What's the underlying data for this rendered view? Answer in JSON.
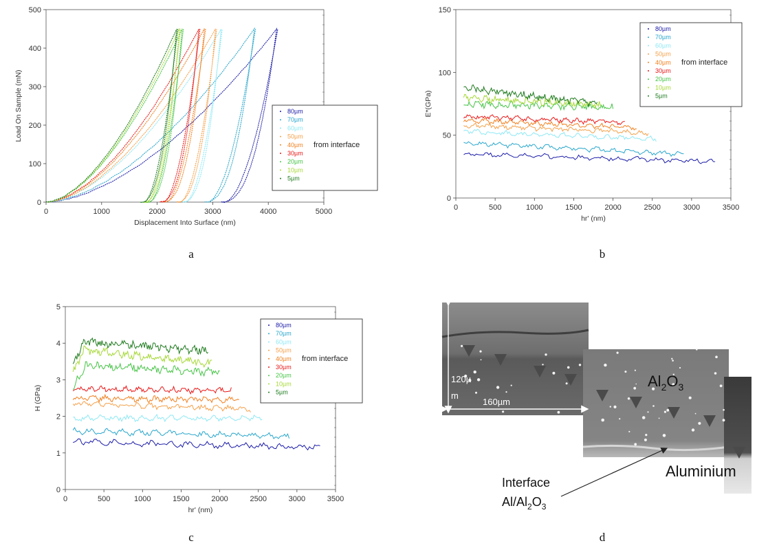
{
  "colors": [
    "#1a1aa8",
    "#28a6cc",
    "#8ee8f4",
    "#f4a04a",
    "#f08020",
    "#e81818",
    "#46c446",
    "#a6d836",
    "#1e7a1e"
  ],
  "legend": {
    "labels": [
      "80µm",
      "70µm",
      "60µm",
      "50µm",
      "40µm",
      "30µm",
      "20µm",
      "10µm",
      "5µm"
    ],
    "from_text": "from interface"
  },
  "panel_labels": {
    "a": "a",
    "b": "b",
    "c": "c",
    "d": "d"
  },
  "chart_data": [
    {
      "id": "a",
      "type": "line",
      "title": "",
      "xlabel": "Displacement Into Surface (nm)",
      "ylabel": "Load On Sample (mN)",
      "xlim": [
        0,
        5000
      ],
      "ylim": [
        0,
        500
      ],
      "xticks": [
        "0",
        "1000",
        "2000",
        "3000",
        "4000",
        "5000"
      ],
      "yticks": [
        "0",
        "100",
        "200",
        "300",
        "400",
        "500"
      ],
      "load_curve_note": "loading-unloading loops, max load 450 mN",
      "series": [
        {
          "name": "80µm",
          "max_disp": 4150,
          "final_disp": 3150,
          "max_load": 450
        },
        {
          "name": "70µm",
          "max_disp": 3750,
          "final_disp": 2850,
          "max_load": 450
        },
        {
          "name": "60µm",
          "max_disp": 3150,
          "final_disp": 2450,
          "max_load": 450
        },
        {
          "name": "50µm",
          "max_disp": 3050,
          "final_disp": 2350,
          "max_load": 450
        },
        {
          "name": "40µm",
          "max_disp": 2850,
          "final_disp": 2100,
          "max_load": 450
        },
        {
          "name": "30µm",
          "max_disp": 2750,
          "final_disp": 2050,
          "max_load": 450
        },
        {
          "name": "20µm",
          "max_disp": 2450,
          "final_disp": 1800,
          "max_load": 450
        },
        {
          "name": "10µm",
          "max_disp": 2400,
          "final_disp": 1750,
          "max_load": 450
        },
        {
          "name": "5µm",
          "max_disp": 2350,
          "final_disp": 1700,
          "max_load": 450
        }
      ]
    },
    {
      "id": "b",
      "type": "line",
      "title": "",
      "xlabel": "hr' (nm)",
      "ylabel": "E*(GPa)",
      "xlim": [
        0,
        3500
      ],
      "ylim": [
        0,
        150
      ],
      "xticks": [
        "0",
        "500",
        "1000",
        "1500",
        "2000",
        "2500",
        "3000",
        "3500"
      ],
      "yticks": [
        "0",
        "50",
        "100",
        "150"
      ],
      "series": [
        {
          "name": "80µm",
          "x": [
            100,
            3300
          ],
          "y": [
            35,
            29
          ]
        },
        {
          "name": "70µm",
          "x": [
            100,
            2900
          ],
          "y": [
            44,
            35
          ]
        },
        {
          "name": "60µm",
          "x": [
            100,
            2550
          ],
          "y": [
            53,
            47
          ]
        },
        {
          "name": "50µm",
          "x": [
            100,
            2450
          ],
          "y": [
            58,
            52
          ]
        },
        {
          "name": "40µm",
          "x": [
            100,
            2300
          ],
          "y": [
            62,
            56
          ]
        },
        {
          "name": "30µm",
          "x": [
            100,
            2150
          ],
          "y": [
            65,
            60
          ]
        },
        {
          "name": "20µm",
          "x": [
            100,
            2000
          ],
          "y": [
            75,
            72
          ]
        },
        {
          "name": "10µm",
          "x": [
            100,
            1850
          ],
          "y": [
            80,
            74
          ]
        },
        {
          "name": "5µm",
          "x": [
            100,
            1800
          ],
          "y": [
            88,
            75
          ]
        }
      ]
    },
    {
      "id": "c",
      "type": "line",
      "title": "",
      "xlabel": "hr' (nm)",
      "ylabel": "H (GPa)",
      "xlim": [
        0,
        3500
      ],
      "ylim": [
        0,
        5
      ],
      "xticks": [
        "0",
        "500",
        "1000",
        "1500",
        "2000",
        "2500",
        "3000",
        "3500"
      ],
      "yticks": [
        "0",
        "1",
        "2",
        "3",
        "4",
        "5"
      ],
      "series": [
        {
          "name": "80µm",
          "x": [
            100,
            3300
          ],
          "y": [
            1.3,
            1.15
          ]
        },
        {
          "name": "70µm",
          "x": [
            100,
            2900
          ],
          "y": [
            1.6,
            1.45
          ]
        },
        {
          "name": "60µm",
          "x": [
            100,
            2550
          ],
          "y": [
            1.95,
            1.95
          ]
        },
        {
          "name": "50µm",
          "x": [
            100,
            2400
          ],
          "y": [
            2.35,
            2.2
          ]
        },
        {
          "name": "40µm",
          "x": [
            100,
            2250
          ],
          "y": [
            2.5,
            2.45
          ]
        },
        {
          "name": "30µm",
          "x": [
            100,
            2150
          ],
          "y": [
            2.75,
            2.7
          ]
        },
        {
          "name": "20µm",
          "x": [
            100,
            2000
          ],
          "y": [
            3.4,
            3.2
          ]
        },
        {
          "name": "10µm",
          "x": [
            100,
            1900
          ],
          "y": [
            3.85,
            3.45
          ]
        },
        {
          "name": "5µm",
          "x": [
            100,
            1850
          ],
          "y": [
            4.05,
            3.8
          ]
        }
      ]
    }
  ],
  "micrograph": {
    "phase_label": "Al",
    "phase_sub": "2",
    "phase_o": "O",
    "phase_o_sub": "3",
    "aluminium_label": "Aluminium",
    "interface_line1": "Interface",
    "interface_line2_a": "Al/Al",
    "interface_line2_sub1": "2",
    "interface_line2_b": "O",
    "interface_line2_sub2": "3",
    "scale_vertical_a": "120µ",
    "scale_vertical_b": "m",
    "scale_horizontal": "160µm"
  }
}
